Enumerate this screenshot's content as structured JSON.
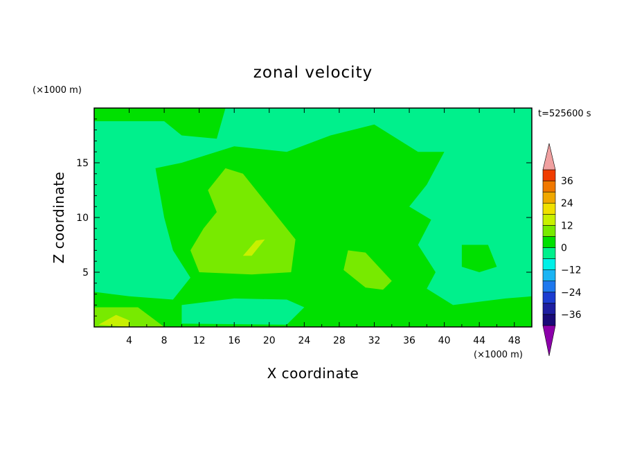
{
  "chart_data": {
    "type": "heatmap",
    "title": "zonal velocity",
    "xlabel": "X coordinate",
    "ylabel": "Z coordinate",
    "x_unit": "(×1000 m)",
    "y_unit": "(×1000 m)",
    "time_label": "t=525600 s",
    "xlim": [
      0,
      50
    ],
    "ylim": [
      0,
      20
    ],
    "x_ticks": [
      4,
      8,
      12,
      16,
      20,
      24,
      28,
      32,
      36,
      40,
      44,
      48
    ],
    "y_ticks": [
      5,
      10,
      15
    ],
    "colorbar": {
      "levels": [
        -42,
        -36,
        -30,
        -24,
        -18,
        -12,
        -6,
        0,
        6,
        12,
        18,
        24,
        30,
        36,
        42
      ],
      "tick_labels": [
        "36",
        "24",
        "12",
        "0",
        "-12",
        "-24",
        "-36"
      ],
      "tick_values": [
        36,
        24,
        12,
        0,
        -12,
        -24,
        -36
      ],
      "colors": [
        "#5a0a8c",
        "#1a0a78",
        "#1e1ea0",
        "#1c3cd0",
        "#1e78ee",
        "#1ab4f4",
        "#00f0e8",
        "#00f08c",
        "#00e000",
        "#78ea00",
        "#c8f000",
        "#f0e000",
        "#f0a800",
        "#f07800",
        "#f03c00",
        "#e60000"
      ],
      "over_color": "#f0a0a0",
      "under_color": "#8c00aa"
    },
    "field_regions": [
      {
        "value": 3,
        "polygon": [
          [
            0,
            18.8
          ],
          [
            8,
            18.8
          ],
          [
            10,
            17.5
          ],
          [
            14,
            17.2
          ],
          [
            15,
            20
          ],
          [
            0,
            20
          ]
        ]
      },
      {
        "value": 3,
        "polygon": [
          [
            7,
            14.5
          ],
          [
            10,
            15
          ],
          [
            16,
            16.5
          ],
          [
            22,
            16
          ],
          [
            27,
            17.5
          ],
          [
            32,
            18.5
          ],
          [
            37,
            16
          ],
          [
            40,
            16
          ],
          [
            38,
            13
          ],
          [
            36,
            11
          ],
          [
            38.5,
            9.8
          ],
          [
            37,
            7.5
          ],
          [
            39,
            5
          ],
          [
            38,
            3.5
          ],
          [
            41,
            2
          ],
          [
            47,
            2.6
          ],
          [
            50,
            2.8
          ],
          [
            50,
            0
          ],
          [
            0,
            0
          ],
          [
            0,
            3.2
          ],
          [
            4,
            2.8
          ],
          [
            9,
            2.5
          ],
          [
            11,
            4.5
          ],
          [
            9,
            7
          ],
          [
            8,
            10
          ]
        ]
      },
      {
        "value": 3,
        "polygon": [
          [
            42,
            7.5
          ],
          [
            45,
            7.5
          ],
          [
            46,
            5.5
          ],
          [
            44,
            5
          ],
          [
            42,
            5.5
          ]
        ]
      },
      {
        "value": -3,
        "polygon": [
          [
            1,
            15.5
          ],
          [
            4,
            15.3
          ],
          [
            4,
            13
          ],
          [
            2,
            10
          ],
          [
            1,
            8
          ],
          [
            3,
            6
          ],
          [
            6,
            6
          ],
          [
            8,
            4
          ],
          [
            7,
            3
          ],
          [
            2,
            3
          ],
          [
            0,
            3.5
          ],
          [
            0,
            15.5
          ]
        ]
      },
      {
        "value": -3,
        "polygon": [
          [
            47,
            14.5
          ],
          [
            50,
            14.5
          ],
          [
            50,
            4.5
          ],
          [
            48,
            5
          ],
          [
            47,
            9
          ]
        ]
      },
      {
        "value": -6,
        "polygon": [
          [
            10,
            2
          ],
          [
            16,
            2.6
          ],
          [
            22,
            2.5
          ],
          [
            24,
            1.8
          ],
          [
            22,
            0.2
          ],
          [
            10,
            0.3
          ]
        ]
      },
      {
        "value": 9,
        "polygon": [
          [
            13,
            12.5
          ],
          [
            15,
            14.5
          ],
          [
            17,
            14
          ],
          [
            21,
            10
          ],
          [
            23,
            8
          ],
          [
            22.5,
            5
          ],
          [
            18,
            4.8
          ],
          [
            12,
            5
          ],
          [
            11,
            7
          ],
          [
            12.5,
            9
          ],
          [
            14,
            10.5
          ]
        ]
      },
      {
        "value": 9,
        "polygon": [
          [
            29,
            7
          ],
          [
            31,
            6.8
          ],
          [
            34,
            4.2
          ],
          [
            33,
            3.4
          ],
          [
            31,
            3.6
          ],
          [
            28.5,
            5.2
          ]
        ]
      },
      {
        "value": 9,
        "polygon": [
          [
            0,
            1.8
          ],
          [
            5,
            1.8
          ],
          [
            8,
            0
          ],
          [
            0,
            0
          ]
        ]
      },
      {
        "value": 15,
        "polygon": [
          [
            17,
            6.5
          ],
          [
            18.5,
            7.9
          ],
          [
            19.5,
            8
          ],
          [
            18,
            6.5
          ]
        ]
      },
      {
        "value": 15,
        "polygon": [
          [
            0.5,
            0.2
          ],
          [
            2.5,
            1.1
          ],
          [
            4,
            0.6
          ],
          [
            4,
            0
          ]
        ]
      }
    ]
  }
}
